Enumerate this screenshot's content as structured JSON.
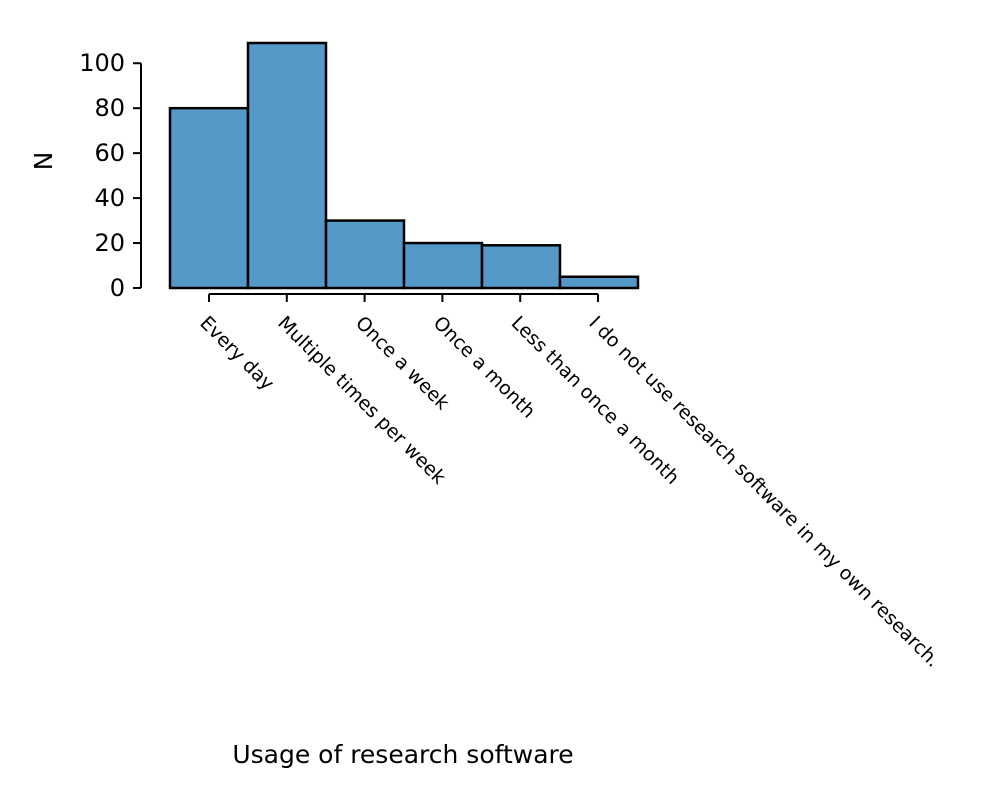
{
  "chart_data": {
    "type": "bar",
    "categories": [
      "Every day",
      "Multiple times per week",
      "Once a week",
      "Once a month",
      "Less than once a month",
      "I do not use research software in my own research."
    ],
    "values": [
      80,
      109,
      30,
      20,
      19,
      5
    ],
    "title": "",
    "xlabel": "Usage of research software",
    "ylabel": "N",
    "ylim": [
      0,
      109
    ],
    "yticks": [
      0,
      20,
      40,
      60,
      80,
      100
    ],
    "grid": false,
    "colors": {
      "bar_fill": "#5499c7",
      "bar_edge": "#000000",
      "axis": "#000000"
    }
  }
}
